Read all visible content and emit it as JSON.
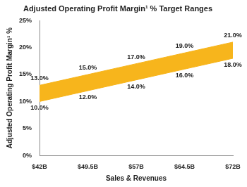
{
  "chart_data": {
    "type": "area",
    "title": "Adjusted Operating Profit Margin¹ % Target Ranges",
    "x_label": "Sales & Revenues",
    "y_label": "Adjusted Operating Profit Margin¹ %",
    "categories": [
      "$42B",
      "$49.5B",
      "$57B",
      "$64.5B",
      "$72B"
    ],
    "series": [
      {
        "color": "#f7b51c",
        "values": [
          10,
          12,
          14,
          16,
          18
        ],
        "value_labels": [
          "10.0%",
          "12.0%",
          "14.0%",
          "16.0%",
          "18.0%"
        ]
      },
      {
        "color": "#f7b51c",
        "values": [
          13,
          15,
          17,
          19,
          21
        ],
        "value_labels": [
          "13.0%",
          "15.0%",
          "17.0%",
          "19.0%",
          "21.0%"
        ]
      }
    ],
    "ylim": [
      0,
      25
    ],
    "yticks": [
      {
        "value": 0,
        "label": "0%"
      },
      {
        "value": 5,
        "label": "5%"
      },
      {
        "value": 10,
        "label": "10%"
      },
      {
        "value": 15,
        "label": "15%"
      },
      {
        "value": 20,
        "label": "20%"
      },
      {
        "value": 25,
        "label": "25%"
      }
    ],
    "grid": false,
    "data_labels": true
  }
}
